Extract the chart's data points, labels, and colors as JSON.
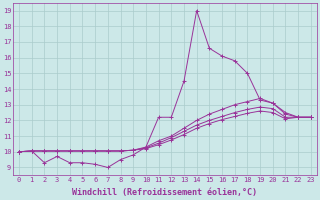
{
  "background_color": "#cce8e8",
  "grid_color": "#aacccc",
  "line_color": "#993399",
  "marker": "+",
  "xlabel": "Windchill (Refroidissement éolien,°C)",
  "xlabel_fontsize": 6,
  "yticks": [
    9,
    10,
    11,
    12,
    13,
    14,
    15,
    16,
    17,
    18,
    19
  ],
  "xticks": [
    0,
    1,
    2,
    3,
    4,
    5,
    6,
    7,
    8,
    9,
    10,
    11,
    12,
    13,
    14,
    15,
    16,
    17,
    18,
    19,
    20,
    21,
    22,
    23
  ],
  "xlim": [
    -0.5,
    23.5
  ],
  "ylim": [
    8.5,
    19.5
  ],
  "series": [
    [
      10.0,
      10.05,
      9.3,
      9.7,
      9.3,
      9.3,
      9.2,
      9.0,
      9.5,
      9.8,
      10.3,
      12.2,
      12.2,
      14.5,
      19.0,
      16.6,
      16.1,
      15.8,
      15.0,
      13.3,
      13.1,
      12.4,
      12.2,
      12.2
    ],
    [
      10.0,
      10.05,
      10.05,
      10.05,
      10.05,
      10.05,
      10.05,
      10.05,
      10.05,
      10.1,
      10.3,
      10.7,
      11.0,
      11.5,
      12.0,
      12.4,
      12.7,
      13.0,
      13.2,
      13.4,
      13.1,
      12.5,
      12.2,
      12.2
    ],
    [
      10.0,
      10.05,
      10.05,
      10.05,
      10.05,
      10.05,
      10.05,
      10.05,
      10.05,
      10.1,
      10.25,
      10.55,
      10.9,
      11.3,
      11.7,
      12.0,
      12.25,
      12.5,
      12.7,
      12.85,
      12.75,
      12.2,
      12.2,
      12.2
    ],
    [
      10.0,
      10.05,
      10.05,
      10.05,
      10.05,
      10.05,
      10.05,
      10.05,
      10.05,
      10.1,
      10.2,
      10.45,
      10.75,
      11.1,
      11.5,
      11.8,
      12.05,
      12.25,
      12.45,
      12.6,
      12.5,
      12.1,
      12.2,
      12.2
    ]
  ],
  "tick_fontsize": 5,
  "figsize": [
    3.2,
    2.0
  ],
  "dpi": 100
}
